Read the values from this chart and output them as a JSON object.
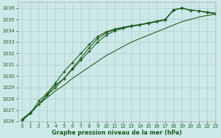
{
  "title": "Graphe pression niveau de la mer (hPa)",
  "bg_color": "#cce8e8",
  "grid_color": "#aacccc",
  "line_color": "#1a5c1a",
  "xlim": [
    -0.5,
    23
  ],
  "ylim": [
    1026,
    1036.5
  ],
  "xticks": [
    0,
    1,
    2,
    3,
    4,
    5,
    6,
    7,
    8,
    9,
    10,
    11,
    12,
    13,
    14,
    15,
    16,
    17,
    18,
    19,
    20,
    21,
    22,
    23
  ],
  "yticks": [
    1026,
    1027,
    1028,
    1029,
    1030,
    1031,
    1032,
    1033,
    1034,
    1035,
    1036
  ],
  "series": [
    [
      1026.1,
      1026.7,
      1027.5,
      1028.4,
      1029.2,
      1029.8,
      1030.6,
      1031.4,
      1032.2,
      1033.0,
      1033.6,
      1034.0,
      1034.2,
      1034.4,
      1034.5,
      1034.65,
      1034.8,
      1034.95,
      1035.8,
      1036.0,
      1035.8,
      1035.75,
      1035.6,
      1035.5
    ],
    [
      1026.1,
      1026.7,
      1027.8,
      1028.5,
      1029.4,
      1030.4,
      1031.2,
      1032.0,
      1032.8,
      1033.5,
      1033.9,
      1034.15,
      1034.3,
      1034.45,
      1034.55,
      1034.7,
      1034.85,
      1035.0,
      1035.85,
      1036.0,
      1035.8,
      1035.75,
      1035.65,
      1035.55
    ],
    [
      1026.2,
      1026.8,
      1027.5,
      1028.3,
      1029.0,
      1029.8,
      1030.7,
      1031.6,
      1032.5,
      1033.3,
      1033.8,
      1034.1,
      1034.25,
      1034.4,
      1034.52,
      1034.65,
      1034.8,
      1034.95,
      1035.82,
      1036.02,
      1035.82,
      1035.75,
      1035.62,
      1035.52
    ],
    [
      1026.0,
      1026.8,
      1027.5,
      1028.1,
      1028.7,
      1029.2,
      1029.8,
      1030.3,
      1030.8,
      1031.3,
      1031.8,
      1032.2,
      1032.6,
      1033.0,
      1033.3,
      1033.6,
      1033.9,
      1034.2,
      1034.5,
      1034.8,
      1035.0,
      1035.2,
      1035.35,
      1035.45
    ]
  ],
  "marker_series": [
    0,
    1,
    2
  ],
  "title_fontsize": 6.0,
  "tick_fontsize": 5.0
}
